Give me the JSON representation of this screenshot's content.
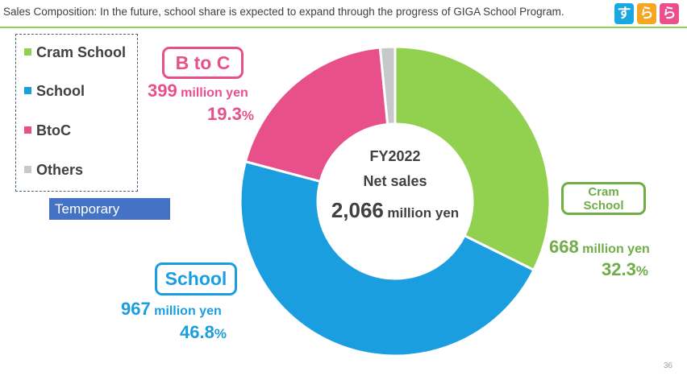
{
  "header": {
    "title": "Sales Composition: In the future, school share is expected to expand through the progress of GIGA School Program.",
    "logo_glyphs": [
      "す",
      "ら",
      "ら"
    ],
    "logo_colors": [
      "#1aa8e0",
      "#f5a623",
      "#ec4e8e"
    ]
  },
  "legend": {
    "items": [
      {
        "label": "Cram School",
        "color": "#92d050"
      },
      {
        "label": "School",
        "color": "#1b9ee0"
      },
      {
        "label": "BtoC",
        "color": "#e8508c"
      },
      {
        "label": "Others",
        "color": "#c8c8c8"
      }
    ]
  },
  "temporary_label": "Temporary",
  "center": {
    "line1": "FY2022",
    "line2": "Net sales",
    "value": "2,066",
    "unit": "million yen"
  },
  "segments": {
    "btoc": {
      "box_label": "B to C",
      "value": "399",
      "unit": "million yen",
      "pct": "19.3",
      "pct_sign": "%",
      "color": "#e8508c"
    },
    "cram": {
      "box_label_line1": "Cram",
      "box_label_line2": "School",
      "value": "668",
      "unit": "million yen",
      "pct": "32.3",
      "pct_sign": "%",
      "color": "#70ad47"
    },
    "school": {
      "box_label": "School",
      "value": "967",
      "unit": "million yen",
      "pct": "46.8",
      "pct_sign": "%",
      "color": "#1b9ee0"
    }
  },
  "page_number": "36",
  "chart_data": {
    "type": "pie",
    "donut": true,
    "title": "FY2022 Net sales",
    "total": 2066,
    "total_unit": "million yen",
    "start_angle_deg": 0,
    "direction": "clockwise",
    "slices": [
      {
        "label": "Cram School",
        "value": 668,
        "percent": 32.3,
        "color": "#92d050"
      },
      {
        "label": "School",
        "value": 967,
        "percent": 46.8,
        "color": "#1b9ee0"
      },
      {
        "label": "BtoC",
        "value": 399,
        "percent": 19.3,
        "color": "#e8508c"
      },
      {
        "label": "Others",
        "value": 32,
        "percent": 1.6,
        "color": "#c8c8c8"
      }
    ],
    "legend_position": "left"
  }
}
